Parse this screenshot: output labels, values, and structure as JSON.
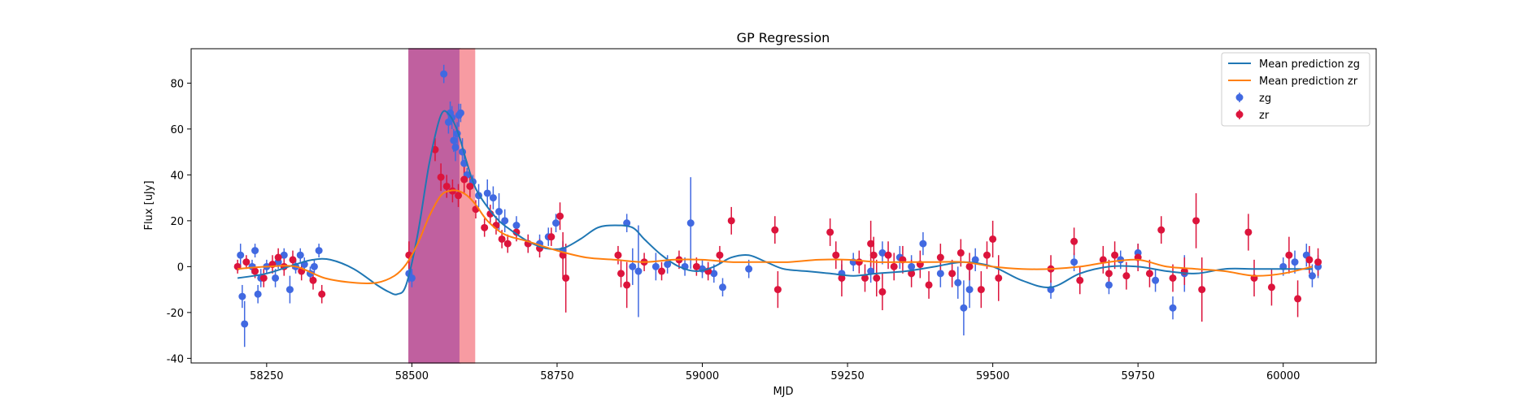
{
  "chart_data": {
    "type": "scatter",
    "title": "GP Regression",
    "xlabel": "MJD",
    "ylabel": "Flux [uJy]",
    "xlim": [
      58120,
      60160
    ],
    "ylim": [
      -42,
      95
    ],
    "xticks": [
      58250,
      58500,
      58750,
      59000,
      59250,
      59500,
      59750,
      60000
    ],
    "yticks": [
      -40,
      -20,
      0,
      20,
      40,
      60,
      80
    ],
    "grid": false,
    "legend_position": "top-right",
    "shaded_regions": [
      {
        "x": [
          58495,
          58583
        ],
        "color": "#c0609f"
      },
      {
        "x": [
          58583,
          58608
        ],
        "color": "#f79ba2"
      }
    ],
    "lines": [
      {
        "name": "Mean prediction zg",
        "color": "#1f77b4",
        "x": [
          58200,
          58250,
          58300,
          58330,
          58360,
          58400,
          58440,
          58460,
          58475,
          58490,
          58510,
          58530,
          58550,
          58565,
          58580,
          58595,
          58610,
          58630,
          58650,
          58670,
          58700,
          58730,
          58760,
          58790,
          58820,
          58850,
          58880,
          58900,
          58930,
          58960,
          58990,
          59020,
          59050,
          59080,
          59110,
          59140,
          59180,
          59220,
          59260,
          59300,
          59350,
          59400,
          59450,
          59500,
          59550,
          59600,
          59650,
          59700,
          59750,
          59800,
          59850,
          59900,
          59950,
          60000,
          60050
        ],
        "y": [
          -5,
          -3,
          1,
          3,
          3,
          -1,
          -8,
          -11,
          -12,
          -8,
          14,
          45,
          66,
          66,
          58,
          45,
          34,
          26,
          20,
          16,
          11,
          8,
          8,
          12,
          17,
          18,
          17,
          12,
          5,
          0,
          -2,
          0,
          4,
          5,
          2,
          -1,
          -2,
          -3,
          -4,
          -3,
          -2,
          0,
          2,
          0,
          -6,
          -9,
          -3,
          0,
          0,
          -2,
          -3,
          -1,
          -1,
          -1,
          -1
        ]
      },
      {
        "name": "Mean prediction zr",
        "color": "#ff7f0e",
        "x": [
          58200,
          58250,
          58300,
          58350,
          58400,
          58440,
          58470,
          58490,
          58510,
          58530,
          58550,
          58565,
          58580,
          58595,
          58610,
          58630,
          58660,
          58700,
          58750,
          58800,
          58850,
          58900,
          58950,
          59000,
          59050,
          59100,
          59150,
          59200,
          59250,
          59300,
          59350,
          59400,
          59450,
          59500,
          59550,
          59600,
          59650,
          59700,
          59750,
          59800,
          59850,
          59900,
          59950,
          60000,
          60050
        ],
        "y": [
          -1,
          0,
          0,
          -5,
          -7,
          -7,
          -4,
          1,
          10,
          22,
          31,
          33,
          33,
          31,
          27,
          20,
          14,
          11,
          7,
          4,
          3,
          2,
          3,
          3,
          2,
          2,
          2,
          3,
          3,
          2,
          2,
          2,
          2,
          0,
          -1,
          -1,
          0,
          2,
          3,
          0,
          -1,
          -2,
          -4,
          -3,
          0
        ]
      }
    ],
    "series": [
      {
        "name": "zg",
        "color": "#4169e1",
        "x": [
          58205,
          58208,
          58212,
          58225,
          58230,
          58235,
          58240,
          58250,
          58265,
          58270,
          58280,
          58290,
          58300,
          58308,
          58315,
          58325,
          58332,
          58340,
          58495,
          58500,
          58555,
          58563,
          58566,
          58569,
          58572,
          58575,
          58578,
          58581,
          58584,
          58587,
          58590,
          58595,
          58605,
          58615,
          58630,
          58640,
          58650,
          58660,
          58680,
          58700,
          58720,
          58735,
          58748,
          58760,
          58870,
          58880,
          58890,
          58920,
          58940,
          58970,
          58980,
          59000,
          59020,
          59035,
          59080,
          59240,
          59260,
          59290,
          59310,
          59340,
          59360,
          59380,
          59410,
          59440,
          59450,
          59460,
          59470,
          59600,
          59640,
          59700,
          59720,
          59750,
          59780,
          59810,
          59830,
          60000,
          60020,
          60040,
          60050,
          60060
        ],
        "y": [
          5,
          -13,
          -25,
          0,
          7,
          -12,
          -5,
          0,
          -5,
          2,
          5,
          -10,
          0,
          5,
          1,
          -3,
          0,
          7,
          -3,
          -5,
          84,
          63,
          67,
          65,
          55,
          52,
          58,
          66,
          67,
          50,
          45,
          40,
          37,
          31,
          32,
          30,
          24,
          20,
          18,
          10,
          10,
          13,
          19,
          7,
          19,
          0,
          -2,
          0,
          1,
          0,
          19,
          -1,
          -3,
          -9,
          -1,
          -3,
          2,
          -2,
          6,
          4,
          0,
          10,
          -3,
          -7,
          -18,
          -10,
          3,
          -10,
          2,
          -8,
          3,
          6,
          -6,
          -18,
          -3,
          0,
          2,
          5,
          -4,
          0
        ],
        "err": [
          5,
          5,
          10,
          3,
          3,
          4,
          4,
          3,
          4,
          3,
          3,
          6,
          3,
          3,
          3,
          3,
          3,
          3,
          4,
          4,
          4,
          5,
          5,
          5,
          5,
          6,
          5,
          5,
          4,
          6,
          5,
          3,
          3,
          5,
          6,
          5,
          8,
          5,
          4,
          4,
          4,
          4,
          4,
          4,
          4,
          8,
          20,
          6,
          4,
          4,
          20,
          4,
          4,
          4,
          4,
          4,
          4,
          5,
          5,
          5,
          5,
          5,
          6,
          7,
          12,
          8,
          5,
          4,
          4,
          4,
          4,
          4,
          5,
          5,
          8,
          4,
          5,
          5,
          5,
          5
        ]
      },
      {
        "name": "zr",
        "color": "#dc143c",
        "x": [
          58200,
          58215,
          58230,
          58245,
          58260,
          58270,
          58280,
          58295,
          58310,
          58330,
          58345,
          58495,
          58540,
          58550,
          58560,
          58570,
          58580,
          58590,
          58600,
          58610,
          58625,
          58635,
          58645,
          58655,
          58665,
          58680,
          58700,
          58720,
          58740,
          58755,
          58760,
          58765,
          58855,
          58860,
          58870,
          58900,
          58930,
          58960,
          58990,
          59010,
          59030,
          59050,
          59125,
          59130,
          59220,
          59230,
          59240,
          59270,
          59280,
          59290,
          59295,
          59300,
          59310,
          59320,
          59330,
          59345,
          59360,
          59375,
          59390,
          59410,
          59430,
          59445,
          59460,
          59480,
          59490,
          59500,
          59510,
          59600,
          59640,
          59650,
          59690,
          59700,
          59710,
          59730,
          59750,
          59770,
          59790,
          59810,
          59830,
          59850,
          59860,
          59940,
          59950,
          59980,
          60010,
          60025,
          60045,
          60060
        ],
        "y": [
          0,
          2,
          -2,
          -5,
          1,
          4,
          0,
          3,
          -2,
          -6,
          -12,
          5,
          51,
          39,
          35,
          33,
          31,
          38,
          35,
          25,
          17,
          23,
          18,
          12,
          10,
          15,
          10,
          8,
          13,
          22,
          5,
          -5,
          5,
          -3,
          -8,
          2,
          -2,
          3,
          0,
          -2,
          5,
          20,
          16,
          -10,
          15,
          5,
          -5,
          2,
          -5,
          10,
          5,
          -5,
          -11,
          5,
          0,
          3,
          -3,
          1,
          -8,
          4,
          -3,
          6,
          0,
          -10,
          5,
          12,
          -5,
          -1,
          11,
          -6,
          3,
          -3,
          5,
          -4,
          4,
          -3,
          16,
          -5,
          -2,
          20,
          -10,
          15,
          -5,
          -9,
          5,
          -14,
          3,
          2
        ],
        "err": [
          3,
          3,
          3,
          4,
          4,
          4,
          4,
          4,
          4,
          4,
          4,
          6,
          5,
          6,
          5,
          5,
          5,
          6,
          5,
          4,
          4,
          4,
          4,
          4,
          4,
          4,
          4,
          4,
          4,
          6,
          10,
          15,
          4,
          6,
          10,
          4,
          4,
          4,
          4,
          4,
          4,
          6,
          6,
          8,
          6,
          6,
          8,
          5,
          6,
          10,
          8,
          8,
          8,
          6,
          6,
          6,
          6,
          6,
          6,
          6,
          6,
          6,
          6,
          8,
          6,
          8,
          10,
          6,
          6,
          6,
          6,
          6,
          6,
          6,
          6,
          6,
          6,
          6,
          6,
          12,
          14,
          8,
          8,
          8,
          8,
          8,
          6,
          6
        ]
      }
    ]
  }
}
